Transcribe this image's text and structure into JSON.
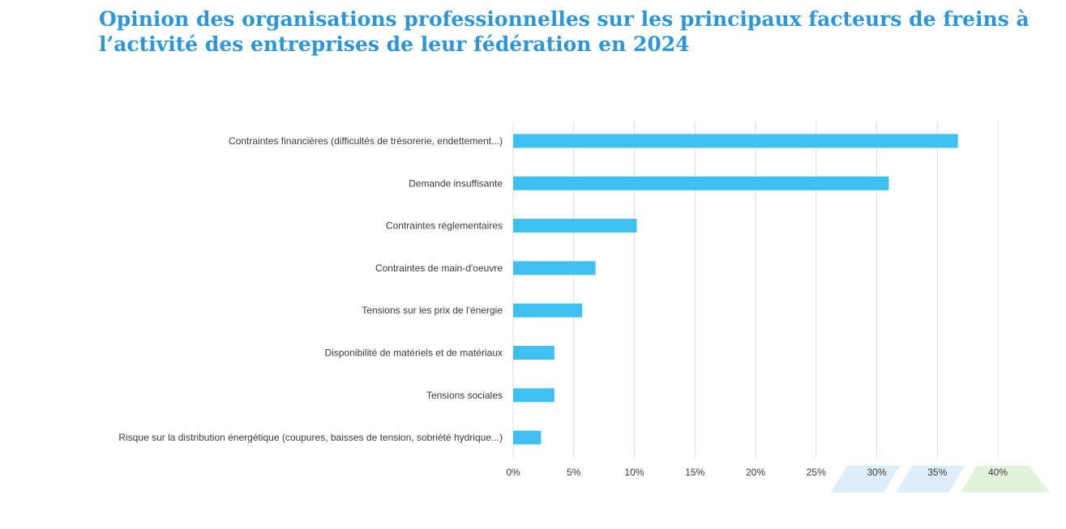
{
  "title": "Opinion des organisations professionnelles sur les principaux facteurs de freins à l’activité des entreprises de leur fédération en 2024",
  "colors": {
    "title": "#2e96d8",
    "bar": "#3ec0f0",
    "grid": "#dddddd",
    "text": "#3a3a3a"
  },
  "chart_data": {
    "type": "bar",
    "orientation": "horizontal",
    "title": "Opinion des organisations professionnelles sur les principaux facteurs de freins à l’activité des entreprises de leur fédération en 2024",
    "categories": [
      "Contraintes financières (difficultés de trésorerie, endettement...)",
      "Demande insuffisante",
      "Contraintes réglementaires",
      "Contraintes de main-d'oeuvre",
      "Tensions sur les prix de l'énergie",
      "Disponibilité de matériels et de matériaux",
      "Tensions sociales",
      "Risque sur la distribution énergétique (coupures, baisses de tension, sobriété hydrique...)"
    ],
    "values": [
      36.7,
      31.0,
      10.2,
      6.8,
      5.7,
      3.4,
      3.4,
      2.3
    ],
    "xlim": [
      0,
      40
    ],
    "xticks": [
      0,
      5,
      10,
      15,
      20,
      25,
      30,
      35,
      40
    ],
    "xtick_labels": [
      "0%",
      "5%",
      "10%",
      "15%",
      "20%",
      "25%",
      "30%",
      "35%",
      "40%"
    ],
    "grid": true,
    "legend": "none",
    "xlabel": "",
    "ylabel": ""
  }
}
